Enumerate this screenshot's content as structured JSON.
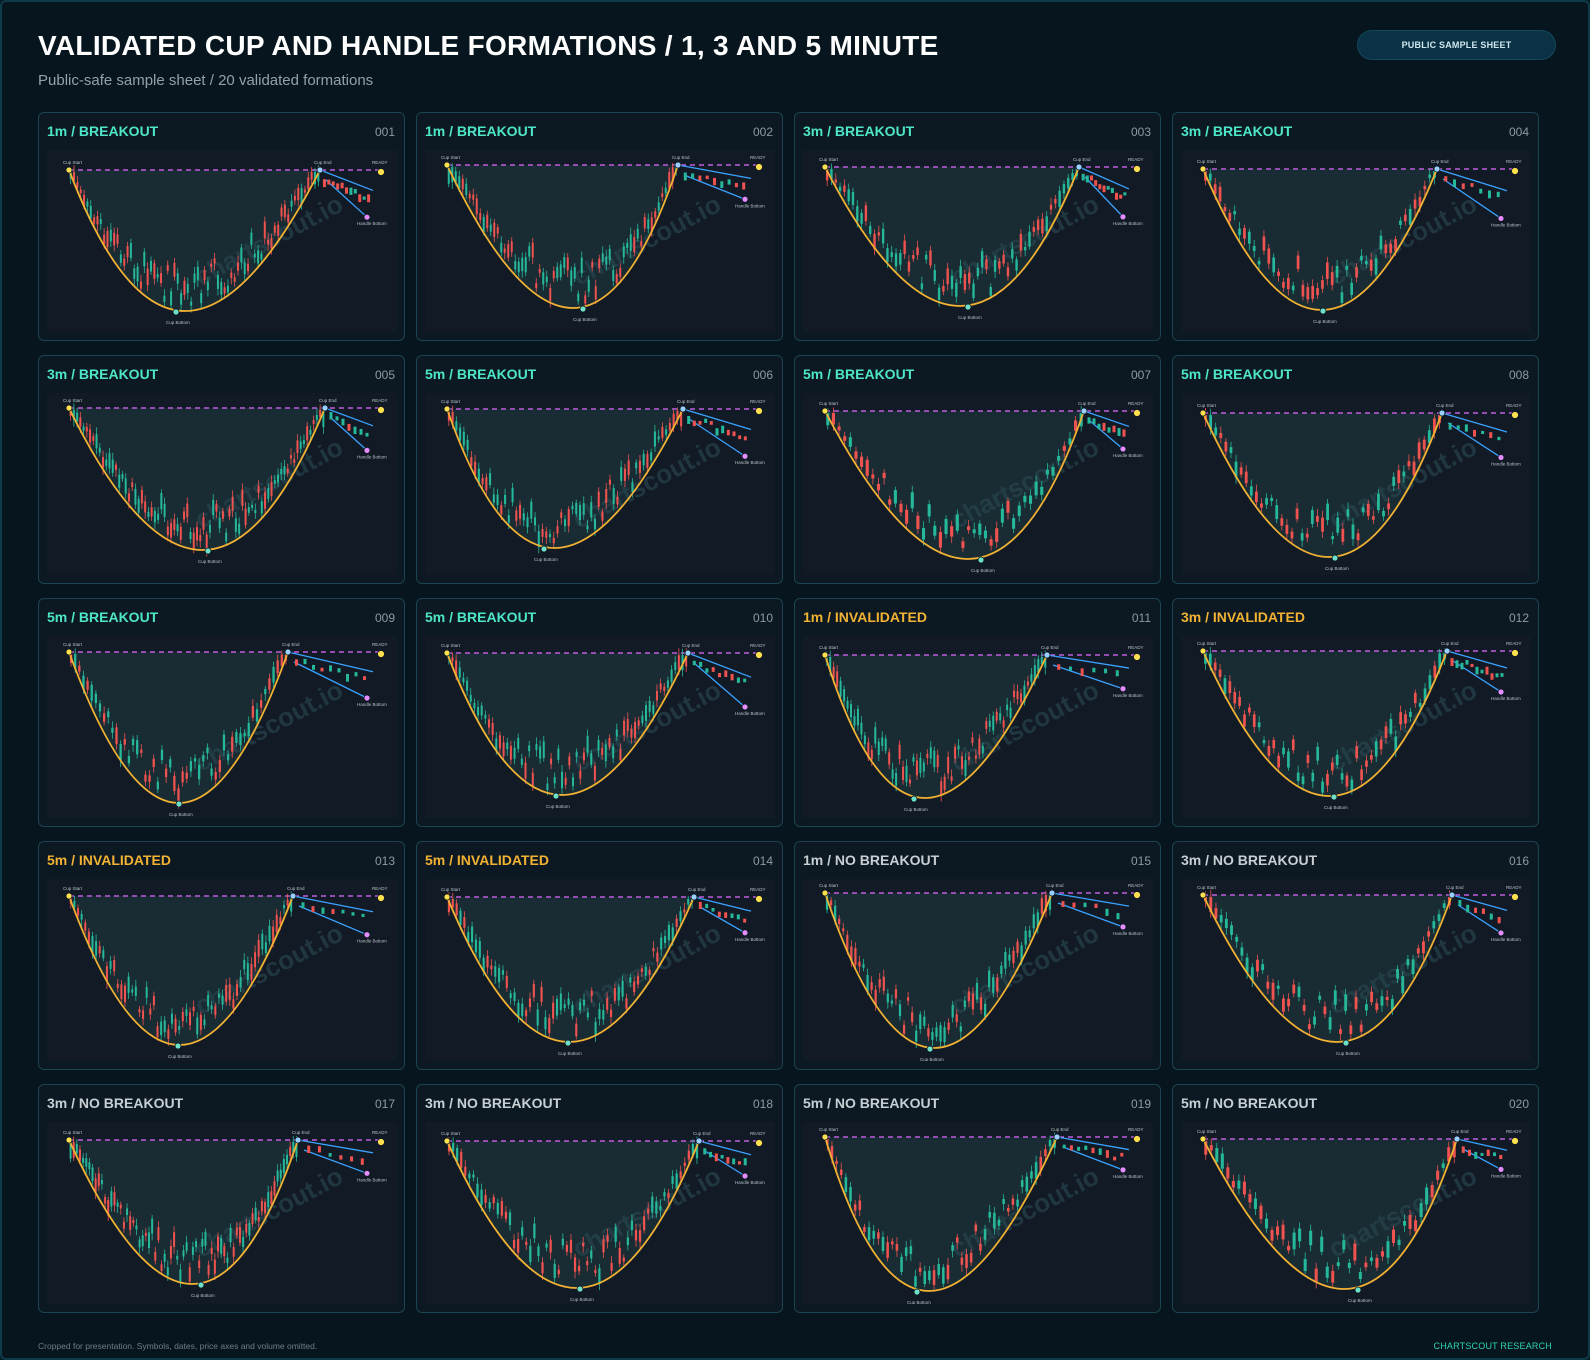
{
  "header": {
    "title": "VALIDATED CUP AND HANDLE FORMATIONS / 1, 3 AND 5 MINUTE",
    "subtitle": "Public-safe sample sheet / 20 validated formations",
    "badge": "PUBLIC SAMPLE SHEET"
  },
  "footer": {
    "note": "Cropped for presentation. Symbols, dates, price axes and volume omitted.",
    "brand": "CHARTSCOUT RESEARCH"
  },
  "colors": {
    "breakout": "#4ee6c8",
    "invalidated": "#f2b233",
    "no_breakout": "#c7cfd5",
    "cup_curve": "#f2b233",
    "rim_line": "#c05de0",
    "handle_line": "#3aa3ff",
    "bull_candle": "#26b89a",
    "bear_candle": "#ef5350",
    "ready_dot": "#ffe14d",
    "cup_bottom_dot": "#6fe0c8"
  },
  "annotations": {
    "cup_start": "Cup Start",
    "cup_end": "Cup End",
    "cup_bottom": "Cup Bottom",
    "handle_bottom": "Handle Bottom",
    "ready": "READY",
    "watermark": "chartscout.io"
  },
  "chart_data": {
    "type": "candlestick-grid",
    "panels": [
      {
        "label": "1m / BREAKOUT",
        "timeframe": "1m",
        "status": "breakout",
        "number": "001"
      },
      {
        "label": "1m / BREAKOUT",
        "timeframe": "1m",
        "status": "breakout",
        "number": "002"
      },
      {
        "label": "3m / BREAKOUT",
        "timeframe": "3m",
        "status": "breakout",
        "number": "003"
      },
      {
        "label": "3m / BREAKOUT",
        "timeframe": "3m",
        "status": "breakout",
        "number": "004"
      },
      {
        "label": "3m / BREAKOUT",
        "timeframe": "3m",
        "status": "breakout",
        "number": "005"
      },
      {
        "label": "5m / BREAKOUT",
        "timeframe": "5m",
        "status": "breakout",
        "number": "006"
      },
      {
        "label": "5m / BREAKOUT",
        "timeframe": "5m",
        "status": "breakout",
        "number": "007"
      },
      {
        "label": "5m / BREAKOUT",
        "timeframe": "5m",
        "status": "breakout",
        "number": "008"
      },
      {
        "label": "5m / BREAKOUT",
        "timeframe": "5m",
        "status": "breakout",
        "number": "009"
      },
      {
        "label": "5m / BREAKOUT",
        "timeframe": "5m",
        "status": "breakout",
        "number": "010"
      },
      {
        "label": "1m / INVALIDATED",
        "timeframe": "1m",
        "status": "invalidated",
        "number": "011"
      },
      {
        "label": "3m / INVALIDATED",
        "timeframe": "3m",
        "status": "invalidated",
        "number": "012"
      },
      {
        "label": "5m / INVALIDATED",
        "timeframe": "5m",
        "status": "invalidated",
        "number": "013"
      },
      {
        "label": "5m / INVALIDATED",
        "timeframe": "5m",
        "status": "invalidated",
        "number": "014"
      },
      {
        "label": "1m / NO BREAKOUT",
        "timeframe": "1m",
        "status": "no_breakout",
        "number": "015"
      },
      {
        "label": "3m / NO BREAKOUT",
        "timeframe": "3m",
        "status": "no_breakout",
        "number": "016"
      },
      {
        "label": "3m / NO BREAKOUT",
        "timeframe": "3m",
        "status": "no_breakout",
        "number": "017"
      },
      {
        "label": "3m / NO BREAKOUT",
        "timeframe": "3m",
        "status": "no_breakout",
        "number": "018"
      },
      {
        "label": "5m / NO BREAKOUT",
        "timeframe": "5m",
        "status": "no_breakout",
        "number": "019"
      },
      {
        "label": "5m / NO BREAKOUT",
        "timeframe": "5m",
        "status": "no_breakout",
        "number": "020"
      }
    ],
    "grid": {
      "columns": 4,
      "rows": 5
    }
  }
}
